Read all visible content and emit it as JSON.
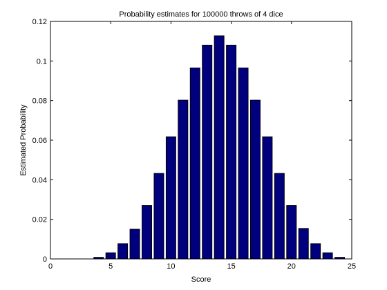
{
  "chart_data": {
    "type": "bar",
    "title": "Probability estimates for 100000 throws of 4 dice",
    "xlabel": "Score",
    "ylabel": "Estimated Probability",
    "xlim": [
      0,
      25
    ],
    "ylim": [
      0,
      0.12
    ],
    "x_ticks": [
      0,
      5,
      10,
      15,
      20,
      25
    ],
    "y_ticks": [
      0,
      0.02,
      0.04,
      0.06,
      0.08,
      0.1,
      0.12
    ],
    "x_tick_labels": [
      "0",
      "5",
      "10",
      "15",
      "20",
      "25"
    ],
    "y_tick_labels": [
      "0",
      "0.02",
      "0.04",
      "0.06",
      "0.08",
      "0.1",
      "0.12"
    ],
    "grid": false,
    "bar_color": "#00007f",
    "x": [
      4,
      5,
      6,
      7,
      8,
      9,
      10,
      11,
      12,
      13,
      14,
      15,
      16,
      17,
      18,
      19,
      20,
      21,
      22,
      23,
      24
    ],
    "values": [
      0.0008,
      0.0031,
      0.0077,
      0.015,
      0.027,
      0.0432,
      0.0617,
      0.0802,
      0.0965,
      0.108,
      0.1127,
      0.108,
      0.0965,
      0.0802,
      0.0617,
      0.0432,
      0.027,
      0.0154,
      0.0077,
      0.0031,
      0.0008
    ]
  }
}
